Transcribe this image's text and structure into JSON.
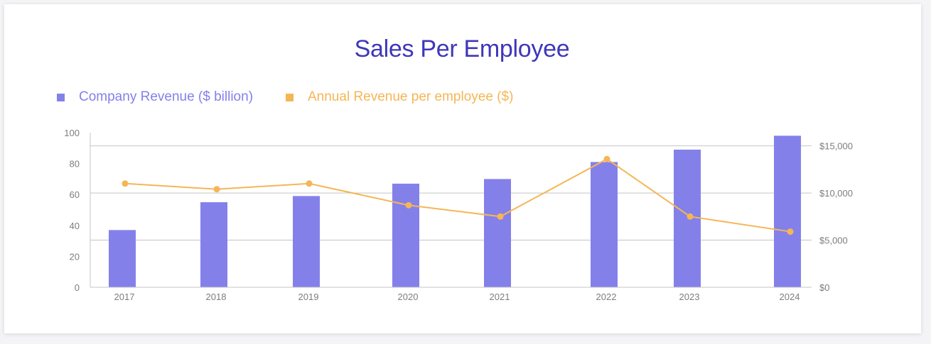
{
  "colors": {
    "revenue": "#8480ea",
    "per_employee": "#f5b656",
    "title": "#3f37b8"
  },
  "chart_data": {
    "type": "bar",
    "title": "Sales Per Employee",
    "categories": [
      "2017",
      "2018",
      "2019",
      "2020",
      "2021",
      "2022",
      "2023",
      "2024"
    ],
    "series": [
      {
        "name": "Company Revenue ($ billion)",
        "type": "bar",
        "axis": "left",
        "values": [
          37,
          55,
          59,
          67,
          70,
          81,
          89,
          98
        ]
      },
      {
        "name": "Annual Revenue per employee ($)",
        "type": "line",
        "axis": "right",
        "values": [
          11000,
          10400,
          11000,
          8700,
          7500,
          13600,
          7500,
          5900
        ]
      }
    ],
    "y_left": {
      "ylim": [
        0,
        100
      ],
      "ticks": [
        0,
        20,
        40,
        60,
        80,
        100
      ],
      "tick_labels": [
        "0",
        "20",
        "40",
        "60",
        "80",
        "100"
      ]
    },
    "y_right": {
      "ylim": [
        0,
        16400
      ],
      "ticks": [
        0,
        5000,
        10000,
        15000
      ],
      "tick_labels": [
        "$0",
        "$5,000",
        "$10,000",
        "$15,000"
      ]
    },
    "xlabel": "",
    "ylabel": "",
    "grid": true,
    "legend": "top-left"
  }
}
